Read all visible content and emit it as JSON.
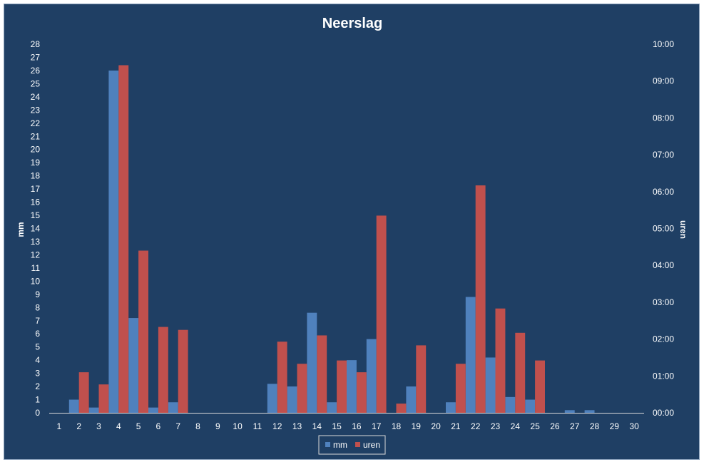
{
  "chart_data": {
    "type": "bar",
    "title": "Neerslag",
    "categories": [
      "1",
      "2",
      "3",
      "4",
      "5",
      "6",
      "7",
      "8",
      "9",
      "10",
      "11",
      "12",
      "13",
      "14",
      "15",
      "16",
      "17",
      "18",
      "19",
      "20",
      "21",
      "22",
      "23",
      "24",
      "25",
      "26",
      "27",
      "28",
      "29",
      "30"
    ],
    "y_left": {
      "label": "mm",
      "range": [
        0,
        28
      ],
      "ticks": [
        "0",
        "1",
        "2",
        "3",
        "4",
        "5",
        "6",
        "7",
        "8",
        "9",
        "10",
        "11",
        "12",
        "13",
        "14",
        "15",
        "16",
        "17",
        "18",
        "19",
        "20",
        "21",
        "22",
        "23",
        "24",
        "25",
        "26",
        "27",
        "28"
      ]
    },
    "y_right": {
      "label": "uren",
      "range_hours": [
        0,
        10
      ],
      "ticks": [
        "00:00",
        "01:00",
        "02:00",
        "03:00",
        "04:00",
        "05:00",
        "06:00",
        "07:00",
        "08:00",
        "09:00",
        "10:00"
      ]
    },
    "series": [
      {
        "name": "mm",
        "axis": "left",
        "color": "#4f81bd",
        "values": [
          0,
          1.0,
          0.4,
          26.0,
          7.2,
          0.4,
          0.8,
          0,
          0,
          0,
          0,
          2.2,
          2.0,
          7.6,
          0.8,
          4.0,
          5.6,
          0,
          2.0,
          0,
          0.8,
          8.8,
          4.2,
          1.2,
          1.0,
          0,
          0.2,
          0.2,
          0,
          0
        ]
      },
      {
        "name": "uren",
        "axis": "right",
        "unit": "hours",
        "color": "#c0504d",
        "values": [
          0,
          1.1,
          0.77,
          9.43,
          4.4,
          2.33,
          2.25,
          0,
          0,
          0,
          0,
          1.93,
          1.33,
          2.1,
          1.42,
          1.1,
          5.35,
          0.25,
          1.83,
          0,
          1.33,
          6.17,
          2.83,
          2.17,
          1.42,
          0,
          0,
          0,
          0,
          0
        ]
      }
    ],
    "legend": {
      "position": "bottom",
      "items": [
        "mm",
        "uren"
      ]
    },
    "grid": false
  }
}
